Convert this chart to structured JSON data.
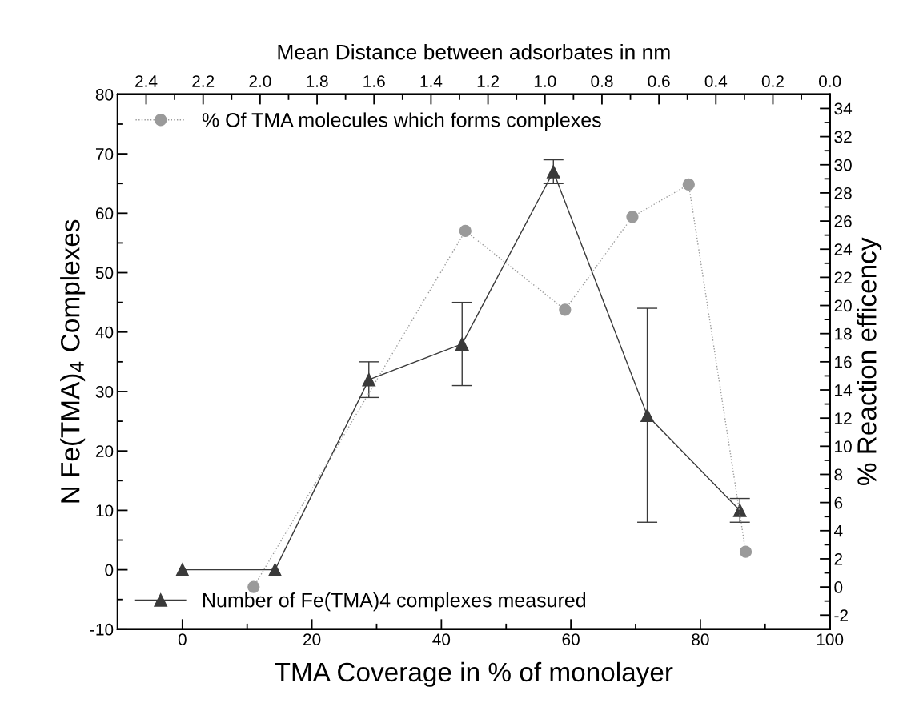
{
  "chart_data": {
    "type": "line",
    "xlabel": "TMA Coverage in % of monolayer",
    "ylabel": "N Fe(TMA)$_{4}$ Complexes",
    "y2label": "% Reaction efficency",
    "x2label": "Mean Distance between adsorbates in nm",
    "series": [
      {
        "name": "Number of Fe(TMA)4 complexes measured",
        "color": "#3a3a3a",
        "marker": "triangle",
        "line_style": "solid",
        "x": [
          0,
          14.3,
          28.8,
          43.2,
          57.3,
          71.8,
          86.1
        ],
        "values": [
          0,
          0,
          32,
          38,
          67,
          26,
          10
        ],
        "errors": [
          null,
          null,
          [
            29,
            35
          ],
          [
            31,
            45
          ],
          [
            65,
            69
          ],
          [
            8,
            44
          ],
          [
            8,
            12
          ]
        ]
      },
      {
        "name": "% Of TMA molecules which forms complexes",
        "color": "#9a9a9a",
        "marker": "circle",
        "line_style": "dotted",
        "axis": "y2",
        "x": [
          11.0,
          43.7,
          59.1,
          69.5,
          78.2,
          87.0
        ],
        "values": [
          0,
          25.3,
          19.7,
          26.3,
          28.6,
          2.5
        ]
      }
    ],
    "xlim": [
      -10,
      100
    ],
    "xticks": [
      0,
      20,
      40,
      60,
      80,
      100
    ],
    "ylim": [
      -10,
      80
    ],
    "yticks": [
      -10,
      0,
      10,
      20,
      30,
      40,
      50,
      60,
      70,
      80
    ],
    "y2lim": [
      -3,
      35
    ],
    "y2ticks": [
      -2,
      0,
      2,
      4,
      6,
      8,
      10,
      12,
      14,
      16,
      18,
      20,
      22,
      24,
      26,
      28,
      30,
      32,
      34
    ],
    "x2lim": [
      2.5,
      0
    ],
    "x2ticks": [
      {
        "value": 2.4,
        "label": "2.4"
      },
      {
        "value": 2.2,
        "label": "2.2"
      },
      {
        "value": 2.0,
        "label": "2.0"
      },
      {
        "value": 1.8,
        "label": "1.8"
      },
      {
        "value": 1.6,
        "label": "1.6"
      },
      {
        "value": 1.4,
        "label": "1.4"
      },
      {
        "value": 1.2,
        "label": "1.2"
      },
      {
        "value": 1.0,
        "label": "1.0"
      },
      {
        "value": 0.8,
        "label": "0.8"
      },
      {
        "value": 0.6,
        "label": "0.6"
      },
      {
        "value": 0.4,
        "label": "0.4"
      },
      {
        "value": 0.2,
        "label": "0.2"
      },
      {
        "value": 0.0,
        "label": "0.0"
      }
    ],
    "grid": false,
    "legend": "left"
  }
}
